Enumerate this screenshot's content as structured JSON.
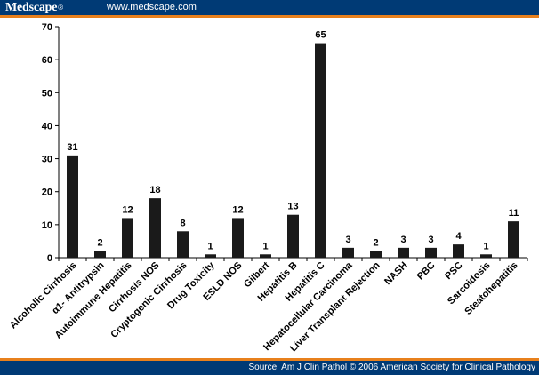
{
  "header": {
    "brand": "Medscape",
    "brand_mark": "®",
    "url": "www.medscape.com"
  },
  "footer": {
    "source": "Source: Am J Clin Pathol © 2006 American Society for Clinical Pathology"
  },
  "colors": {
    "header_bg": "#003a75",
    "accent": "#e8801c",
    "bar": "#1a1a1a"
  },
  "chart_data": {
    "type": "bar",
    "title": "",
    "xlabel": "",
    "ylabel": "",
    "ylim": [
      0,
      70
    ],
    "yticks": [
      0,
      10,
      20,
      30,
      40,
      50,
      60,
      70
    ],
    "grid": false,
    "legend": false,
    "categories": [
      "Alcoholic Cirrhosis",
      "α1- Antitrypsin",
      "Autoimmune Hepatitis",
      "Cirrhosis NOS",
      "Cryptogenic Cirrhosis",
      "Drug Toxicity",
      "ESLD NOS",
      "Gilbert",
      "Hepatitis B",
      "Hepatitis C",
      "Hepatocellular Carcinoma",
      "Liver Transplant Rejection",
      "NASH",
      "PBC",
      "PSC",
      "Sarcoidosis",
      "Steatohepatitis"
    ],
    "values": [
      31,
      2,
      12,
      18,
      8,
      1,
      12,
      1,
      13,
      65,
      3,
      2,
      3,
      3,
      4,
      1,
      11
    ]
  }
}
